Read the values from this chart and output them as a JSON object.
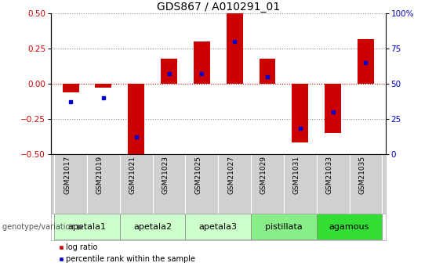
{
  "title": "GDS867 / A010291_01",
  "samples": [
    "GSM21017",
    "GSM21019",
    "GSM21021",
    "GSM21023",
    "GSM21025",
    "GSM21027",
    "GSM21029",
    "GSM21031",
    "GSM21033",
    "GSM21035"
  ],
  "log_ratio": [
    -0.06,
    -0.03,
    -0.5,
    0.18,
    0.3,
    0.5,
    0.18,
    -0.42,
    -0.35,
    0.32
  ],
  "percentile_rank": [
    37,
    40,
    12,
    57,
    57,
    80,
    55,
    18,
    30,
    65
  ],
  "groups": [
    {
      "name": "apetala1",
      "indices": [
        0,
        1
      ],
      "color": "#ccffcc"
    },
    {
      "name": "apetala2",
      "indices": [
        2,
        3
      ],
      "color": "#ccffcc"
    },
    {
      "name": "apetala3",
      "indices": [
        4,
        5
      ],
      "color": "#ccffcc"
    },
    {
      "name": "pistillata",
      "indices": [
        6,
        7
      ],
      "color": "#88ee88"
    },
    {
      "name": "agamous",
      "indices": [
        8,
        9
      ],
      "color": "#44dd44"
    }
  ],
  "ylim_left": [
    -0.5,
    0.5
  ],
  "ylim_right": [
    0,
    100
  ],
  "yticks_left": [
    -0.5,
    -0.25,
    0.0,
    0.25,
    0.5
  ],
  "yticks_right": [
    0,
    25,
    50,
    75,
    100
  ],
  "bar_color": "#cc0000",
  "dot_color": "#0000cc",
  "bar_width": 0.5,
  "grid_color": "#888888",
  "zero_line_color": "#cc0000",
  "title_fontsize": 10,
  "tick_fontsize": 7.5,
  "sample_label_fontsize": 6.5,
  "group_label_fontsize": 8
}
